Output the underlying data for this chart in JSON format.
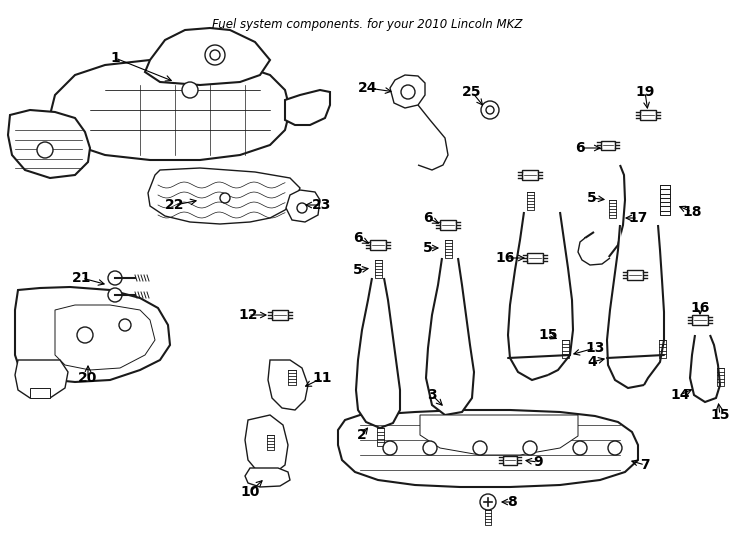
{
  "title": "Fuel system components. for your 2010 Lincoln MKZ",
  "bg_color": "#ffffff",
  "line_color": "#1a1a1a",
  "label_color": "#000000",
  "font_size_title": 8.5,
  "font_size_label": 10,
  "figsize": [
    7.34,
    5.4
  ],
  "dpi": 100
}
